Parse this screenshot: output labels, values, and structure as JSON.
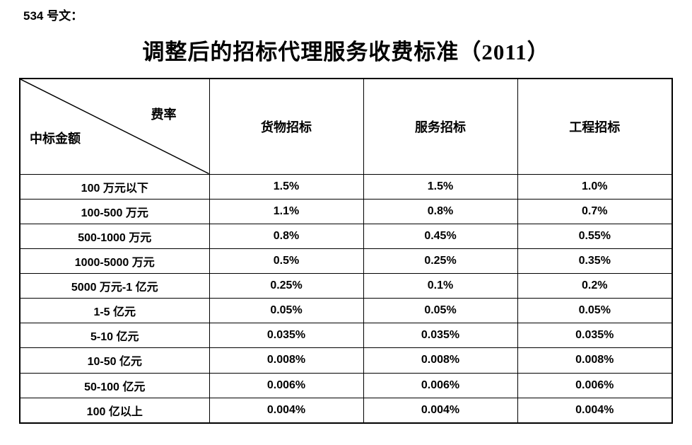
{
  "doc_number": "534 号文：",
  "title": "调整后的招标代理服务收费标准（2011）",
  "colors": {
    "text": "#000000",
    "border": "#000000",
    "background": "#ffffff"
  },
  "table": {
    "corner": {
      "top_right": "费率",
      "bottom_left": "中标金额"
    },
    "columns": [
      "货物招标",
      "服务招标",
      "工程招标"
    ],
    "rows": [
      {
        "label": "100 万元以下",
        "values": [
          "1.5%",
          "1.5%",
          "1.0%"
        ]
      },
      {
        "label": "100-500 万元",
        "values": [
          "1.1%",
          "0.8%",
          "0.7%"
        ]
      },
      {
        "label": "500-1000 万元",
        "values": [
          "0.8%",
          "0.45%",
          "0.55%"
        ]
      },
      {
        "label": "1000-5000 万元",
        "values": [
          "0.5%",
          "0.25%",
          "0.35%"
        ]
      },
      {
        "label": "5000 万元-1 亿元",
        "values": [
          "0.25%",
          "0.1%",
          "0.2%"
        ]
      },
      {
        "label": "1-5 亿元",
        "values": [
          "0.05%",
          "0.05%",
          "0.05%"
        ]
      },
      {
        "label": "5-10 亿元",
        "values": [
          "0.035%",
          "0.035%",
          "0.035%"
        ]
      },
      {
        "label": "10-50 亿元",
        "values": [
          "0.008%",
          "0.008%",
          "0.008%"
        ]
      },
      {
        "label": "50-100 亿元",
        "values": [
          "0.006%",
          "0.006%",
          "0.006%"
        ]
      },
      {
        "label": "100 亿以上",
        "values": [
          "0.004%",
          "0.004%",
          "0.004%"
        ]
      }
    ]
  }
}
